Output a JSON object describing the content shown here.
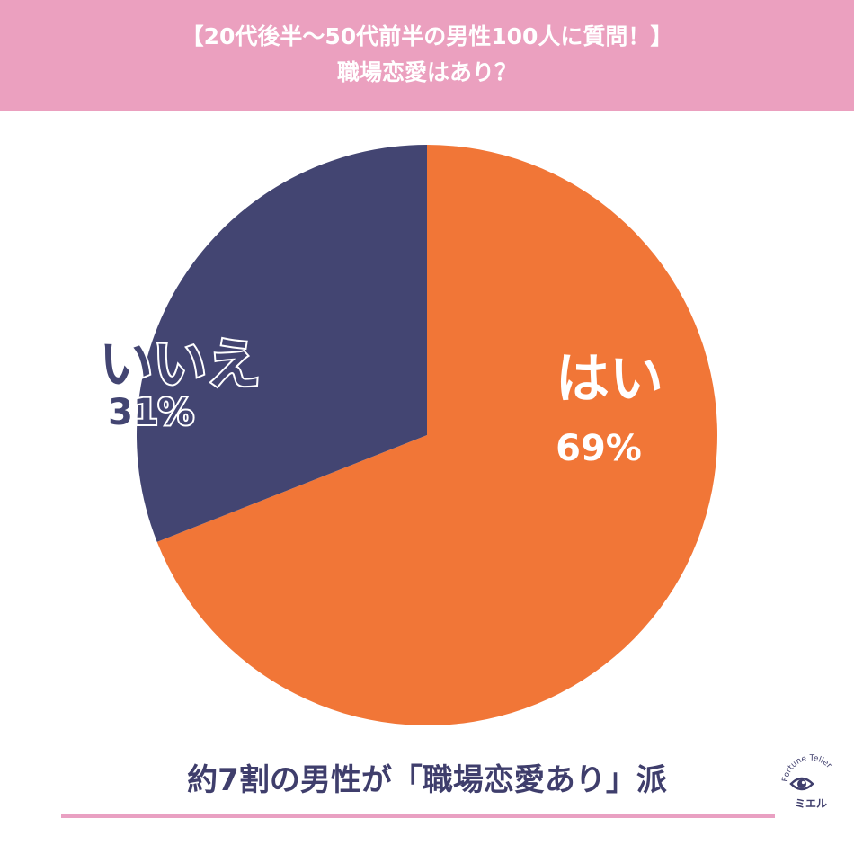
{
  "header": {
    "line1": "【20代後半〜50代前半の男性100人に質問！】",
    "line2": "職場恋愛はあり？"
  },
  "chart_data": {
    "type": "pie",
    "slices": [
      {
        "label": "はい",
        "value": 69,
        "value_label": "69%",
        "color": "#f17637"
      },
      {
        "label": "いいえ",
        "value": 31,
        "value_label": "31%",
        "color": "#434572"
      }
    ],
    "start": "12 o'clock",
    "direction": "clockwise"
  },
  "footer": {
    "summary": "約7割の男性が「職場恋愛あり」派"
  },
  "logo": {
    "tagline": "Fortune Teller",
    "name": "ミエル",
    "icon": "eye-moon-icon",
    "colors": {
      "moon": "#c9a54a",
      "eye": "#3f3e6c"
    }
  },
  "colors": {
    "header_bg": "#eba0bf",
    "accent_line": "#e9a0c2",
    "footer_text": "#3f3e6c"
  }
}
